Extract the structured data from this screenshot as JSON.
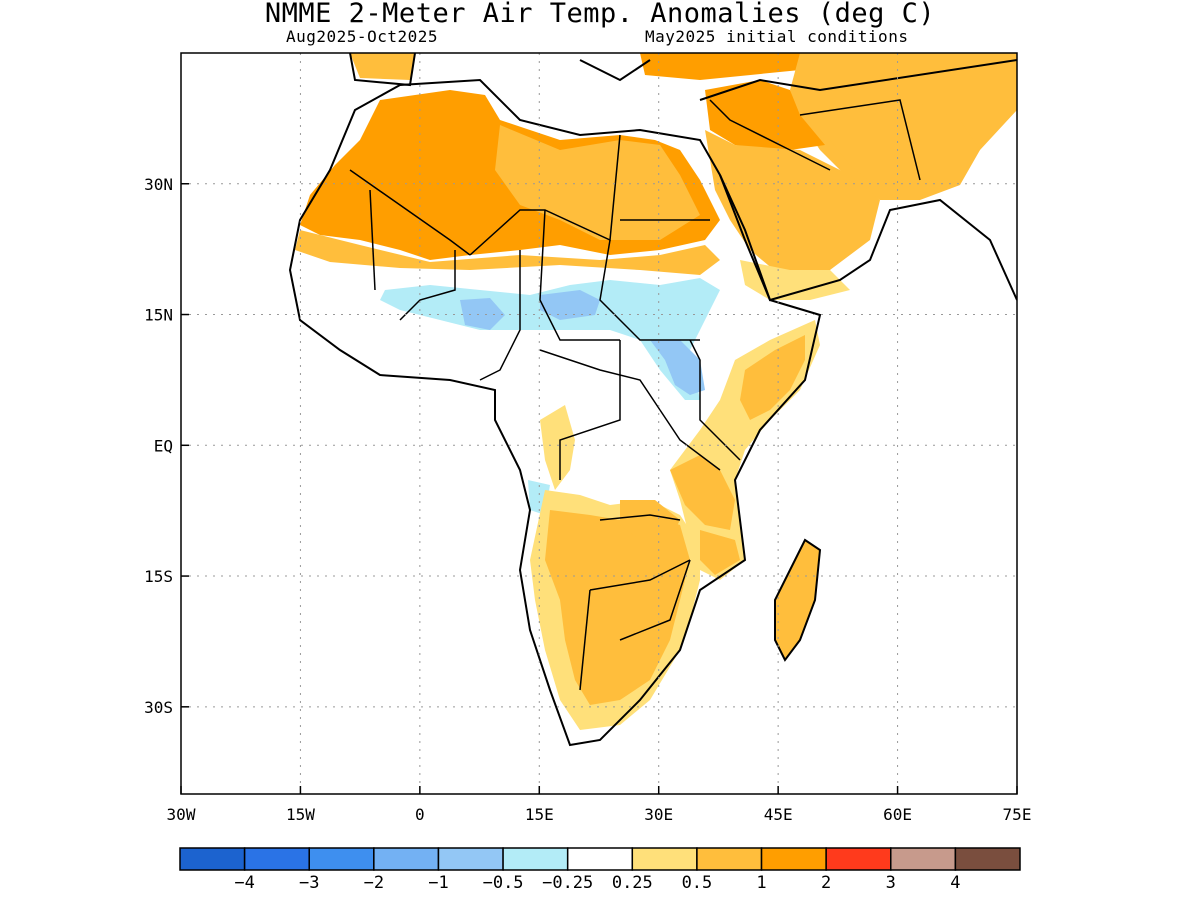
{
  "title": "NMME 2-Meter Air Temp. Anomalies (deg C)",
  "subtitle_left": "Aug2025-Oct2025",
  "subtitle_right": "May2025 initial conditions",
  "map": {
    "lon_range": [
      -30,
      75
    ],
    "lat_range": [
      -40,
      45
    ],
    "lon_ticks": [
      {
        "lon": -30,
        "label": "30W"
      },
      {
        "lon": -15,
        "label": "15W"
      },
      {
        "lon": 0,
        "label": "0"
      },
      {
        "lon": 15,
        "label": "15E"
      },
      {
        "lon": 30,
        "label": "30E"
      },
      {
        "lon": 45,
        "label": "45E"
      },
      {
        "lon": 60,
        "label": "60E"
      },
      {
        "lon": 75,
        "label": "75E"
      }
    ],
    "lat_ticks": [
      {
        "lat": 30,
        "label": "30N"
      },
      {
        "lat": 15,
        "label": "15N"
      },
      {
        "lat": 0,
        "label": "EQ"
      },
      {
        "lat": -15,
        "label": "15S"
      },
      {
        "lat": -30,
        "label": "30S"
      }
    ],
    "gridlines": "dotted"
  },
  "colorbar": {
    "colors": [
      "#1c63cf",
      "#2a73e6",
      "#3e8fef",
      "#73b1f3",
      "#93c7f5",
      "#b3ecf7",
      "#ffffff",
      "#ffe07a",
      "#ffbe3c",
      "#ff9e00",
      "#ff3a1c",
      "#c79a8c",
      "#7a4e3e"
    ],
    "labels": [
      "-4",
      "-3",
      "-2",
      "-1",
      "-0.5",
      "-0.25",
      "0.25",
      "0.5",
      "1",
      "2",
      "3",
      "4"
    ]
  },
  "anomaly_regions": [
    {
      "name": "Sahara",
      "category": "1 to 2",
      "color": "#ff9e00"
    },
    {
      "name": "Middle East",
      "category": "1 to 2",
      "color": "#ff9e00"
    },
    {
      "name": "Sahel",
      "category": "-0.5 to -0.25",
      "color": "#b3ecf7"
    },
    {
      "name": "South Sudan",
      "category": "-1 to -0.5",
      "color": "#93c7f5"
    },
    {
      "name": "Southern Africa",
      "category": "0.5 to 1",
      "color": "#ffbe3c"
    },
    {
      "name": "Horn of Africa",
      "category": "0.5 to 1",
      "color": "#ffbe3c"
    },
    {
      "name": "Madagascar",
      "category": "0.5 to 1",
      "color": "#ffbe3c"
    }
  ]
}
